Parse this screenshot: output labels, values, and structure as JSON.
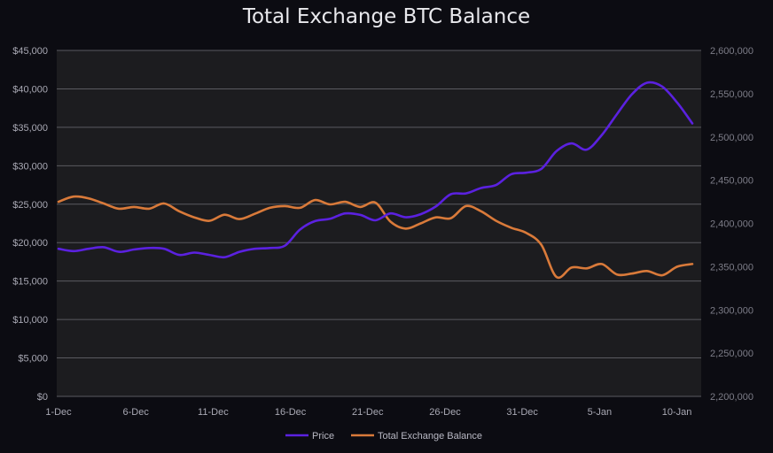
{
  "chart_data": {
    "type": "line",
    "title": "Total Exchange BTC Balance",
    "x_ticks": [
      "1-Dec",
      "6-Dec",
      "11-Dec",
      "16-Dec",
      "21-Dec",
      "26-Dec",
      "31-Dec",
      "5-Jan",
      "10-Jan"
    ],
    "x_range": [
      0,
      41
    ],
    "y_left": {
      "range": [
        0,
        45000
      ],
      "ticks": [
        "$0",
        "$5,000",
        "$10,000",
        "$15,000",
        "$20,000",
        "$25,000",
        "$30,000",
        "$35,000",
        "$40,000",
        "$45,000"
      ]
    },
    "y_right": {
      "range": [
        2200000,
        2600000
      ],
      "ticks": [
        "2,200,000",
        "2,250,000",
        "2,300,000",
        "2,350,000",
        "2,400,000",
        "2,450,000",
        "2,500,000",
        "2,550,000",
        "2,600,000"
      ]
    },
    "grid": true,
    "legend_position": "bottom",
    "series": [
      {
        "name": "Price",
        "axis": "left",
        "color": "#5b21e0",
        "values": [
          19200,
          18900,
          19200,
          19400,
          18800,
          19100,
          19300,
          19200,
          18400,
          18700,
          18400,
          18100,
          18800,
          19200,
          19300,
          19600,
          21700,
          22800,
          23100,
          23800,
          23600,
          22900,
          23800,
          23300,
          23700,
          24700,
          26300,
          26400,
          27100,
          27500,
          28900,
          29100,
          29600,
          31900,
          32900,
          32100,
          34000,
          36700,
          39300,
          40800,
          40300,
          38200,
          35500
        ]
      },
      {
        "name": "Total Exchange Balance",
        "axis": "right",
        "color": "#d97a3a",
        "values": [
          2425000,
          2431000,
          2429000,
          2423000,
          2417000,
          2419000,
          2417000,
          2423000,
          2414000,
          2407000,
          2403000,
          2410000,
          2405000,
          2411000,
          2418000,
          2420000,
          2418000,
          2427000,
          2422000,
          2425000,
          2419000,
          2424000,
          2402000,
          2394000,
          2400000,
          2407000,
          2406000,
          2420000,
          2414000,
          2403000,
          2395000,
          2389000,
          2375000,
          2338000,
          2349000,
          2348000,
          2353000,
          2341000,
          2342000,
          2345000,
          2340000,
          2350000,
          2353000
        ]
      }
    ]
  }
}
